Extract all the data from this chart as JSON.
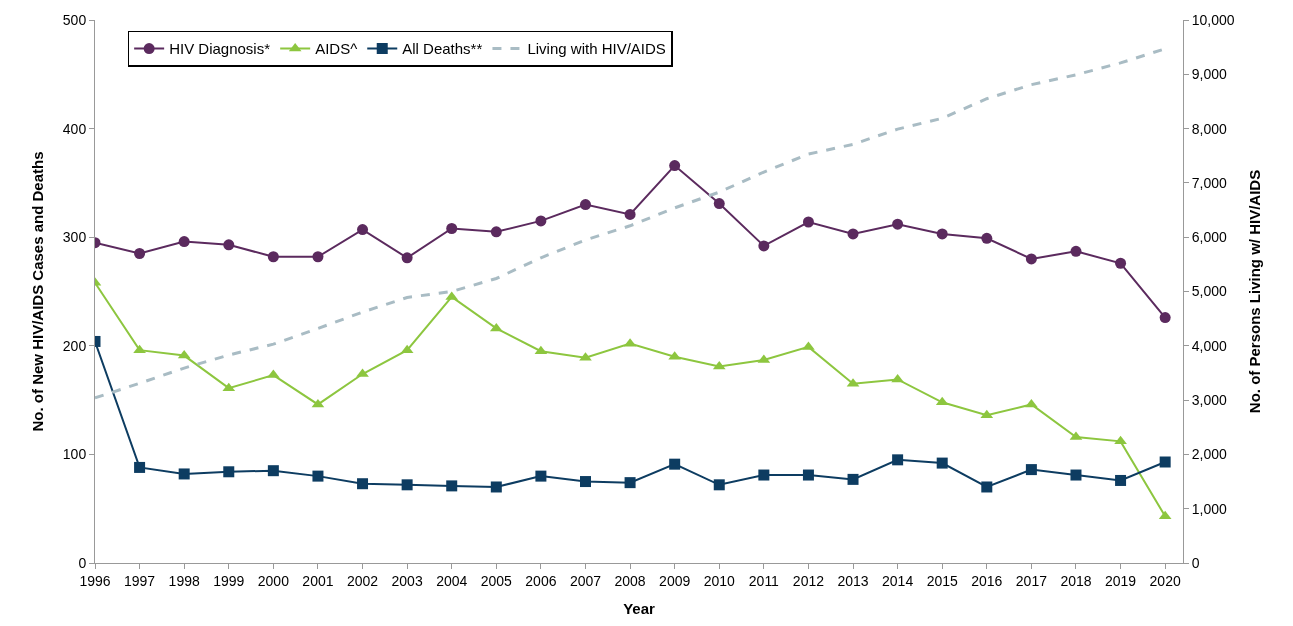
{
  "chart_data": {
    "type": "line",
    "xlabel": "Year",
    "ylabel": "No. of New HIV/AIDS Cases and Deaths",
    "y2label": "No. of Persons Living w/ HIV/AIDS",
    "categories": [
      "1996",
      "1997",
      "1998",
      "1999",
      "2000",
      "2001",
      "2002",
      "2003",
      "2004",
      "2005",
      "2006",
      "2007",
      "2008",
      "2009",
      "2010",
      "2011",
      "2012",
      "2013",
      "2014",
      "2015",
      "2016",
      "2017",
      "2018",
      "2019",
      "2020"
    ],
    "series": [
      {
        "name": "HIV Diagnosis*",
        "color": "#5b2a5e",
        "marker": "circle",
        "line_style": "solid",
        "values": [
          295,
          285,
          296,
          293,
          282,
          282,
          307,
          281,
          308,
          305,
          315,
          330,
          321,
          366,
          331,
          292,
          314,
          303,
          312,
          303,
          299,
          280,
          287,
          276,
          226
        ]
      },
      {
        "name": "AIDS^",
        "color": "#8dc63f",
        "marker": "triangle",
        "line_style": "solid",
        "values": [
          258,
          196,
          191,
          161,
          173,
          146,
          174,
          196,
          245,
          216,
          195,
          189,
          202,
          190,
          181,
          187,
          199,
          165,
          169,
          148,
          136,
          146,
          116,
          112,
          43
        ]
      },
      {
        "name": "All Deaths**",
        "color": "#0d3c61",
        "marker": "square",
        "line_style": "solid",
        "values": [
          204,
          88,
          82,
          84,
          85,
          80,
          73,
          72,
          71,
          70,
          80,
          75,
          74,
          91,
          72,
          81,
          81,
          77,
          95,
          92,
          70,
          86,
          81,
          76,
          93
        ]
      },
      {
        "name": "Living with HIV/AIDS",
        "color": "#a9bcc4",
        "marker": "none",
        "line_style": "dashed",
        "axis": "y2",
        "values": [
          3040,
          3310,
          3590,
          3830,
          4030,
          4320,
          4620,
          4890,
          5000,
          5240,
          5620,
          5950,
          6210,
          6540,
          6830,
          7200,
          7530,
          7710,
          7990,
          8190,
          8550,
          8810,
          8990,
          9210,
          9470
        ]
      }
    ],
    "ylim": [
      0,
      500
    ],
    "yticks": [
      0,
      100,
      200,
      300,
      400,
      500
    ],
    "y2lim": [
      0,
      10000
    ],
    "y2ticks": [
      {
        "value": 0,
        "label": "0"
      },
      {
        "value": 1000,
        "label": "1,000"
      },
      {
        "value": 2000,
        "label": "2,000"
      },
      {
        "value": 3000,
        "label": "3,000"
      },
      {
        "value": 4000,
        "label": "4,000"
      },
      {
        "value": 5000,
        "label": "5,000"
      },
      {
        "value": 6000,
        "label": "6,000"
      },
      {
        "value": 7000,
        "label": "7,000"
      },
      {
        "value": 8000,
        "label": "8,000"
      },
      {
        "value": 9000,
        "label": "9,000"
      },
      {
        "value": 10000,
        "label": "10,000"
      }
    ],
    "legend": "top left"
  }
}
